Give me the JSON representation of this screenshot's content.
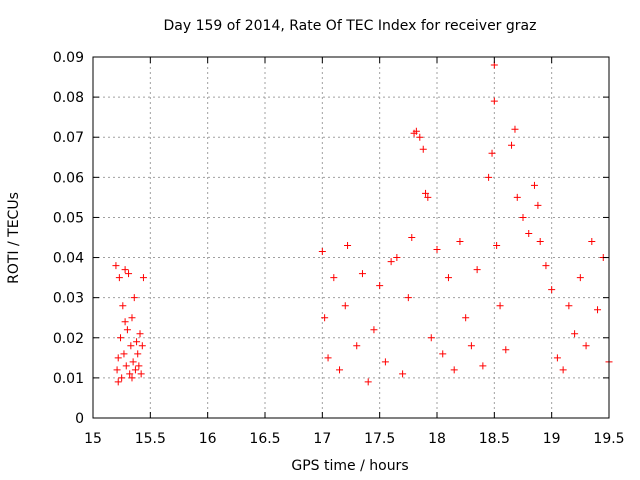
{
  "chart_data": {
    "type": "scatter",
    "title": "Day 159 of 2014, Rate Of TEC Index for receiver graz",
    "xlabel": "GPS time / hours",
    "ylabel": "ROTI / TECUs",
    "xlim": [
      15,
      19.5
    ],
    "ylim": [
      0,
      0.09
    ],
    "x_ticks": [
      15,
      15.5,
      16,
      16.5,
      17,
      17.5,
      18,
      18.5,
      19,
      19.5
    ],
    "x_tick_labels": [
      "15",
      "15.5",
      "16",
      "16.5",
      "17",
      "17.5",
      "18",
      "18.5",
      "19",
      "19.5"
    ],
    "y_ticks": [
      0,
      0.01,
      0.02,
      0.03,
      0.04,
      0.05,
      0.06,
      0.07,
      0.08,
      0.09
    ],
    "y_tick_labels": [
      "0",
      "0.01",
      "0.02",
      "0.03",
      "0.04",
      "0.05",
      "0.06",
      "0.07",
      "0.08",
      "0.09"
    ],
    "grid": true,
    "marker": "+",
    "marker_color": "#ff0000",
    "series": [
      {
        "name": "ROTI",
        "points": [
          [
            15.2,
            0.038
          ],
          [
            15.21,
            0.012
          ],
          [
            15.22,
            0.015
          ],
          [
            15.23,
            0.035
          ],
          [
            15.24,
            0.02
          ],
          [
            15.25,
            0.01
          ],
          [
            15.26,
            0.028
          ],
          [
            15.27,
            0.016
          ],
          [
            15.28,
            0.037
          ],
          [
            15.29,
            0.013
          ],
          [
            15.3,
            0.022
          ],
          [
            15.31,
            0.036
          ],
          [
            15.32,
            0.011
          ],
          [
            15.33,
            0.018
          ],
          [
            15.34,
            0.025
          ],
          [
            15.35,
            0.014
          ],
          [
            15.36,
            0.03
          ],
          [
            15.37,
            0.012
          ],
          [
            15.38,
            0.019
          ],
          [
            15.39,
            0.016
          ],
          [
            15.4,
            0.013
          ],
          [
            15.41,
            0.021
          ],
          [
            15.42,
            0.011
          ],
          [
            15.43,
            0.018
          ],
          [
            15.44,
            0.035
          ],
          [
            15.22,
            0.009
          ],
          [
            15.28,
            0.024
          ],
          [
            15.34,
            0.01
          ],
          [
            17.0,
            0.0415
          ],
          [
            17.02,
            0.025
          ],
          [
            17.05,
            0.015
          ],
          [
            17.1,
            0.035
          ],
          [
            17.15,
            0.012
          ],
          [
            17.2,
            0.028
          ],
          [
            17.22,
            0.043
          ],
          [
            17.3,
            0.018
          ],
          [
            17.35,
            0.036
          ],
          [
            17.4,
            0.009
          ],
          [
            17.45,
            0.022
          ],
          [
            17.5,
            0.033
          ],
          [
            17.55,
            0.014
          ],
          [
            17.6,
            0.039
          ],
          [
            17.65,
            0.04
          ],
          [
            17.7,
            0.011
          ],
          [
            17.75,
            0.03
          ],
          [
            17.78,
            0.045
          ],
          [
            17.8,
            0.071
          ],
          [
            17.82,
            0.0715
          ],
          [
            17.85,
            0.07
          ],
          [
            17.88,
            0.067
          ],
          [
            17.9,
            0.056
          ],
          [
            17.92,
            0.055
          ],
          [
            17.95,
            0.02
          ],
          [
            18.0,
            0.042
          ],
          [
            18.05,
            0.016
          ],
          [
            18.1,
            0.035
          ],
          [
            18.15,
            0.012
          ],
          [
            18.2,
            0.044
          ],
          [
            18.25,
            0.025
          ],
          [
            18.3,
            0.018
          ],
          [
            18.35,
            0.037
          ],
          [
            18.4,
            0.013
          ],
          [
            18.45,
            0.06
          ],
          [
            18.48,
            0.066
          ],
          [
            18.5,
            0.088
          ],
          [
            18.5,
            0.079
          ],
          [
            18.52,
            0.043
          ],
          [
            18.55,
            0.028
          ],
          [
            18.6,
            0.017
          ],
          [
            18.65,
            0.068
          ],
          [
            18.68,
            0.072
          ],
          [
            18.7,
            0.055
          ],
          [
            18.75,
            0.05
          ],
          [
            18.8,
            0.046
          ],
          [
            18.85,
            0.058
          ],
          [
            18.88,
            0.053
          ],
          [
            18.9,
            0.044
          ],
          [
            18.95,
            0.038
          ],
          [
            19.0,
            0.032
          ],
          [
            19.05,
            0.015
          ],
          [
            19.1,
            0.012
          ],
          [
            19.15,
            0.028
          ],
          [
            19.2,
            0.021
          ],
          [
            19.25,
            0.035
          ],
          [
            19.3,
            0.018
          ],
          [
            19.35,
            0.044
          ],
          [
            19.4,
            0.027
          ],
          [
            19.45,
            0.04
          ],
          [
            19.5,
            0.014
          ]
        ]
      }
    ]
  }
}
